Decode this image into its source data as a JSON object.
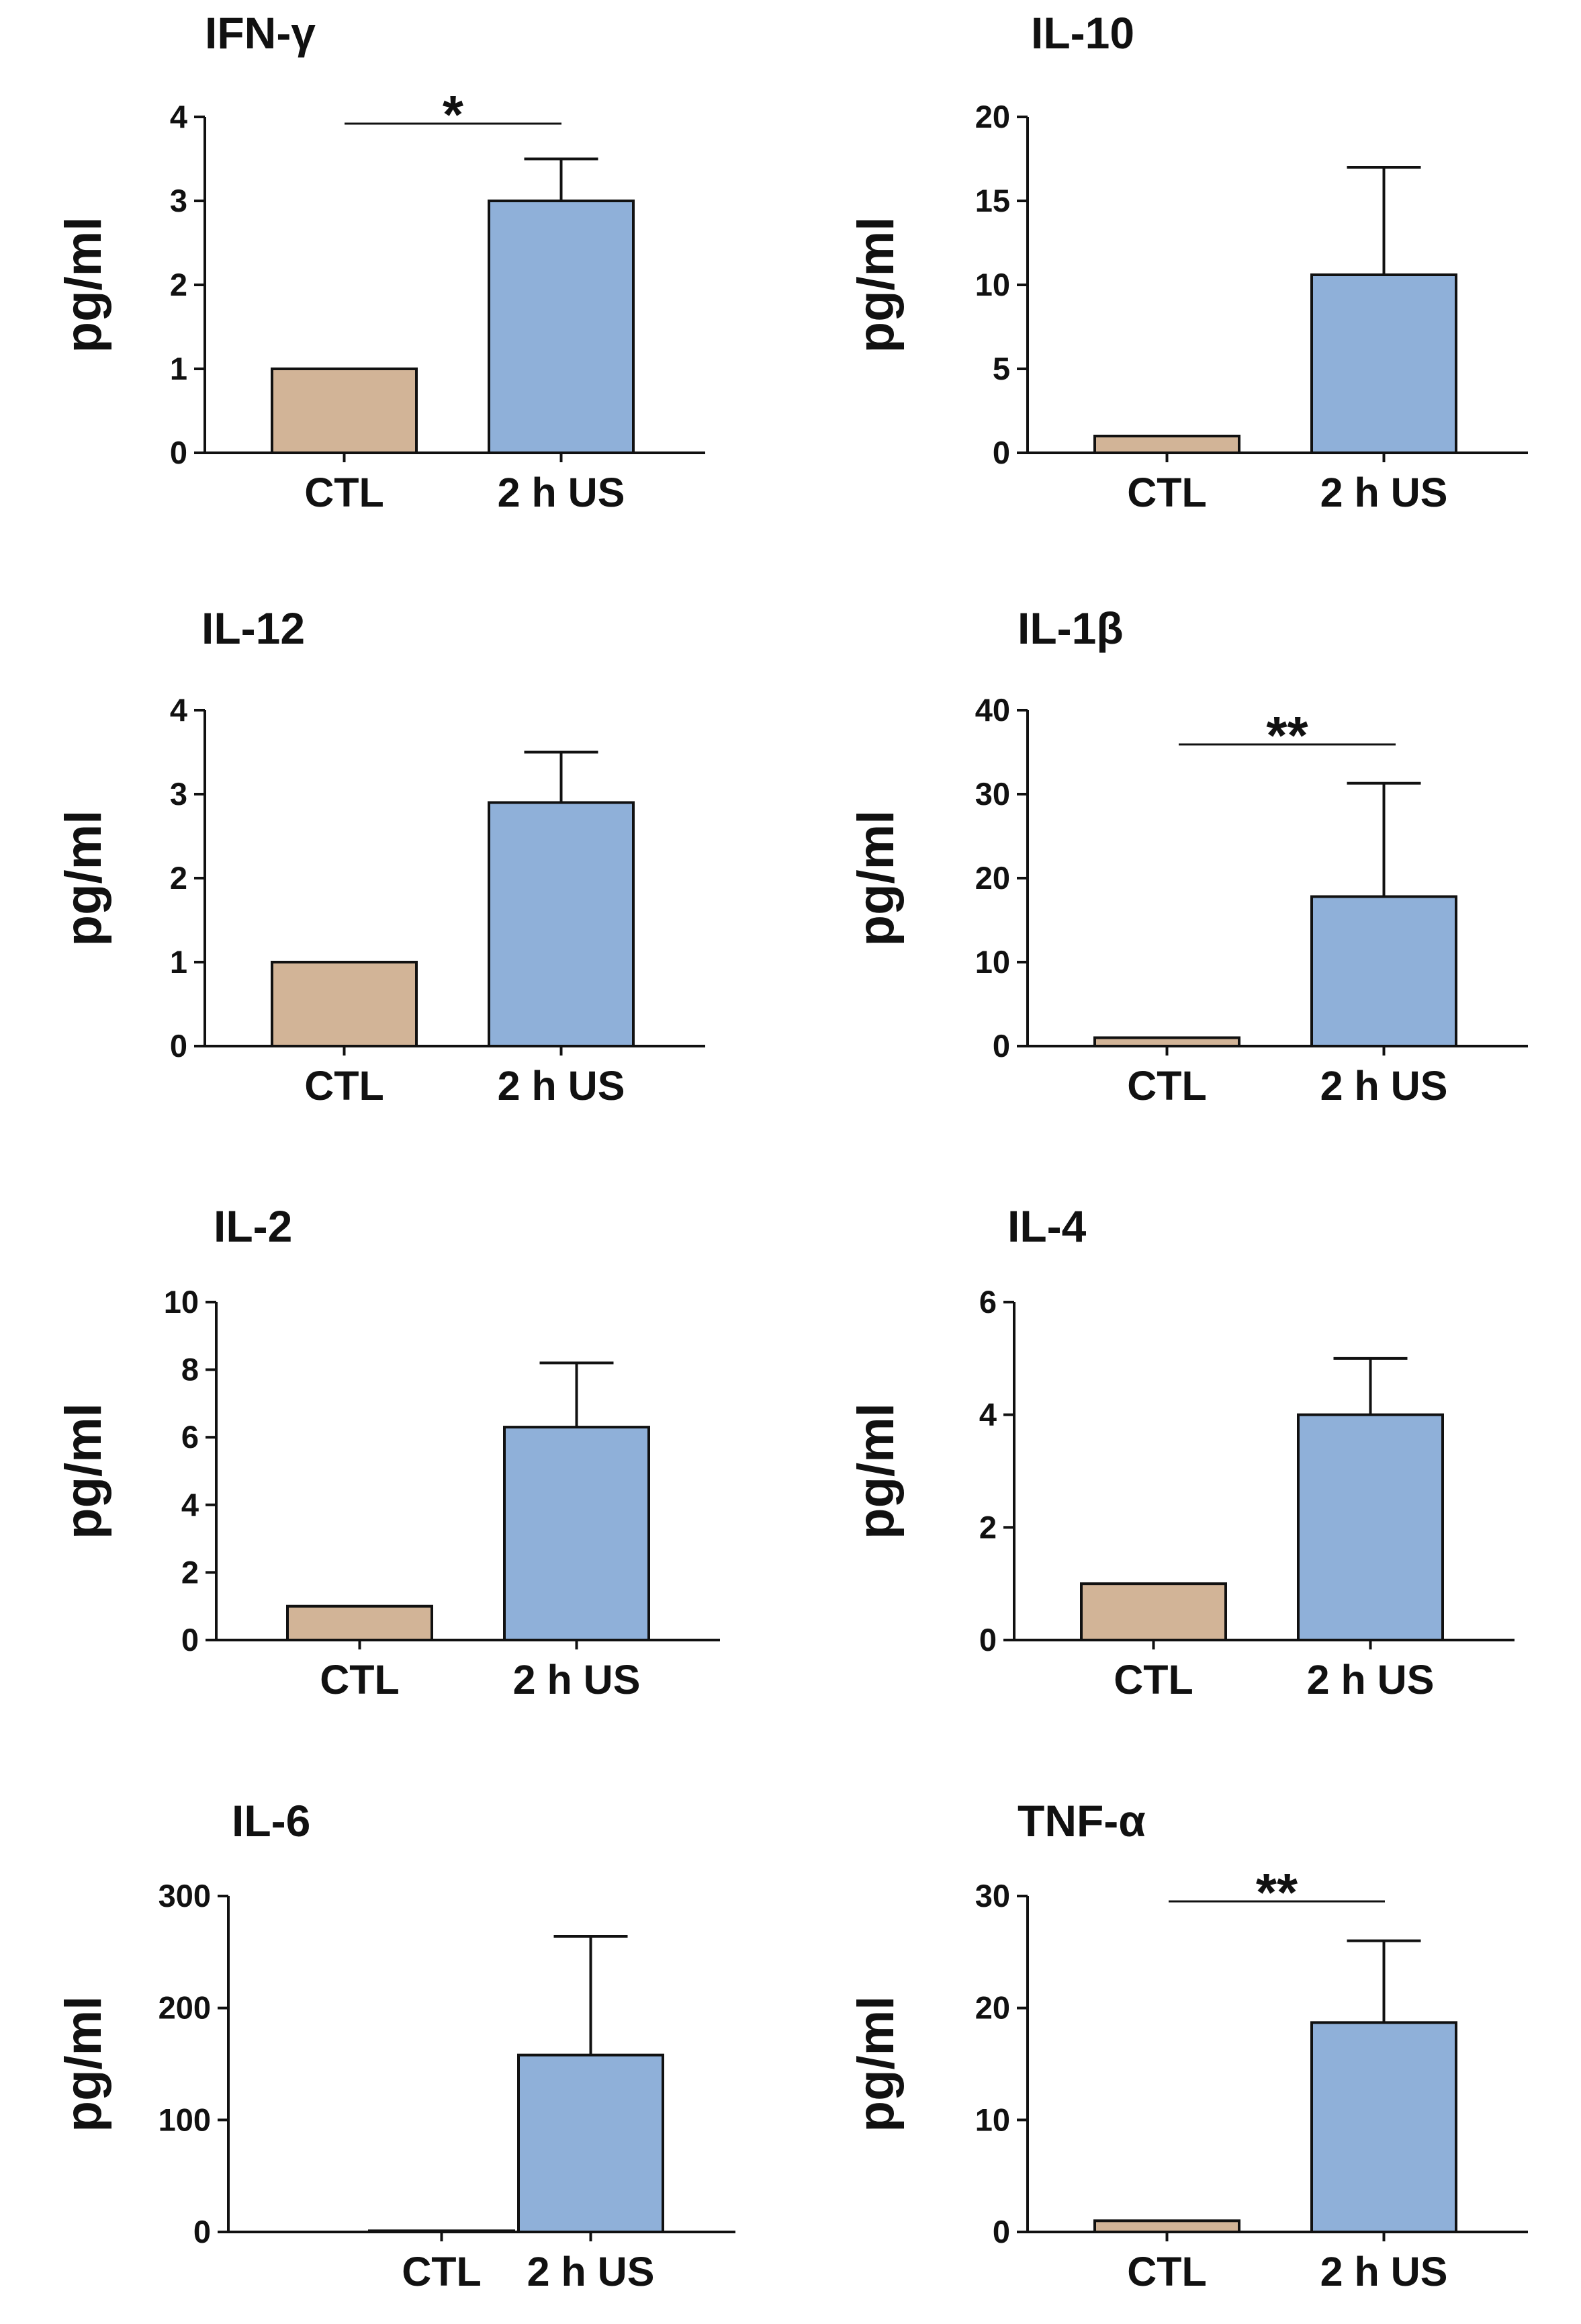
{
  "colors": {
    "ctl": "#D2B497",
    "treated": "#8FB0D9",
    "stroke": "#111111",
    "background": "#ffffff"
  },
  "chart_data": [
    {
      "type": "bar",
      "title": "IFN-γ",
      "ylabel": "pg/ml",
      "categories": [
        "CTL",
        "2 h US"
      ],
      "values": [
        1,
        3.0
      ],
      "errors": [
        0,
        0.5
      ],
      "ylim": [
        0,
        4
      ],
      "yticks": [
        0,
        1,
        2,
        3,
        4
      ],
      "significance": "*"
    },
    {
      "type": "bar",
      "title": "IL-10",
      "ylabel": "pg/ml",
      "categories": [
        "CTL",
        "2 h US"
      ],
      "values": [
        1,
        10.6
      ],
      "errors": [
        0,
        6.4
      ],
      "ylim": [
        0,
        20
      ],
      "yticks": [
        0,
        5,
        10,
        15,
        20
      ],
      "significance": ""
    },
    {
      "type": "bar",
      "title": "IL-12",
      "ylabel": "pg/ml",
      "categories": [
        "CTL",
        "2 h US"
      ],
      "values": [
        1,
        2.9
      ],
      "errors": [
        0,
        0.6
      ],
      "ylim": [
        0,
        4
      ],
      "yticks": [
        0,
        1,
        2,
        3,
        4
      ],
      "significance": ""
    },
    {
      "type": "bar",
      "title": "IL-1β",
      "ylabel": "pg/ml",
      "categories": [
        "CTL",
        "2 h US"
      ],
      "values": [
        1,
        17.8
      ],
      "errors": [
        0,
        13.5
      ],
      "ylim": [
        0,
        40
      ],
      "yticks": [
        0,
        10,
        20,
        30,
        40
      ],
      "significance": "**"
    },
    {
      "type": "bar",
      "title": "IL-2",
      "ylabel": "pg/ml",
      "categories": [
        "CTL",
        "2 h US"
      ],
      "values": [
        1,
        6.3
      ],
      "errors": [
        0,
        1.9
      ],
      "ylim": [
        0,
        10
      ],
      "yticks": [
        0,
        2,
        4,
        6,
        8,
        10
      ],
      "significance": ""
    },
    {
      "type": "bar",
      "title": "IL-4",
      "ylabel": "pg/ml",
      "categories": [
        "CTL",
        "2 h US"
      ],
      "values": [
        1,
        4.0
      ],
      "errors": [
        0,
        1.0
      ],
      "ylim": [
        0,
        6
      ],
      "yticks": [
        0,
        2,
        4,
        6
      ],
      "significance": ""
    },
    {
      "type": "bar",
      "title": "IL-6",
      "ylabel": "pg/ml",
      "categories": [
        "CTL",
        "2 h US"
      ],
      "values": [
        1,
        158
      ],
      "errors": [
        0,
        106
      ],
      "ylim": [
        0,
        300
      ],
      "yticks": [
        0,
        100,
        200,
        300
      ],
      "significance": ""
    },
    {
      "type": "bar",
      "title": "TNF-α",
      "ylabel": "pg/ml",
      "categories": [
        "CTL",
        "2 h US"
      ],
      "values": [
        1,
        18.7
      ],
      "errors": [
        0,
        7.3
      ],
      "ylim": [
        0,
        30
      ],
      "yticks": [
        0,
        10,
        20,
        30
      ],
      "significance": "**"
    }
  ]
}
